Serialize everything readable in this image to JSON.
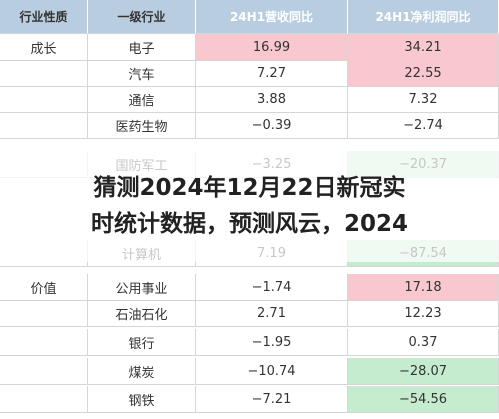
{
  "header": [
    "行业性质",
    "一级行业",
    "24H1营收同比",
    "24H1净利润同比"
  ],
  "header_color": "#b9cde0",
  "rows": [
    {
      "group": "成长",
      "cells": [
        "电子",
        "16.99",
        "34.21"
      ],
      "fills": [
        "#f8c8ce",
        "#f8c8ce"
      ]
    },
    {
      "cells": [
        "汽车",
        "7.27",
        "22.55"
      ],
      "fills": [
        null,
        "#f8c8ce"
      ]
    },
    {
      "cells": [
        "通信",
        "3.88",
        "7.32"
      ],
      "fills": [
        null,
        null
      ]
    },
    {
      "cells": [
        "医药生物",
        "−0.39",
        "−2.74"
      ],
      "fills": [
        null,
        null
      ]
    },
    {
      "cells": [
        "国防军工",
        "−3.25",
        "−20.37"
      ],
      "fills": [
        null,
        "#c6ecd0"
      ]
    },
    {
      "cells": [
        "计算机",
        "7.19",
        "−87.54"
      ],
      "fills": [
        null,
        "#c6ecd0"
      ]
    },
    {
      "group": "价值",
      "cells": [
        "公用事业",
        "−1.74",
        "17.18"
      ],
      "fills": [
        null,
        "#f8c8ce"
      ]
    },
    {
      "cells": [
        "石油石化",
        "2.71",
        "12.23"
      ],
      "fills": [
        null,
        null
      ]
    },
    {
      "cells": [
        "银行",
        "−1.95",
        "0.37"
      ],
      "fills": [
        null,
        null
      ]
    },
    {
      "cells": [
        "煤炭",
        "−10.74",
        "−28.07"
      ],
      "fills": [
        null,
        "#c6ecd0"
      ]
    },
    {
      "cells": [
        "钢铁",
        "−7.21",
        "−54.56"
      ],
      "fills": [
        null,
        "#c6ecd0"
      ]
    }
  ],
  "overlay": {
    "lines": [
      "猜测2024年12月22日新冠实",
      "时统计数据，预测风云，2024"
    ]
  }
}
